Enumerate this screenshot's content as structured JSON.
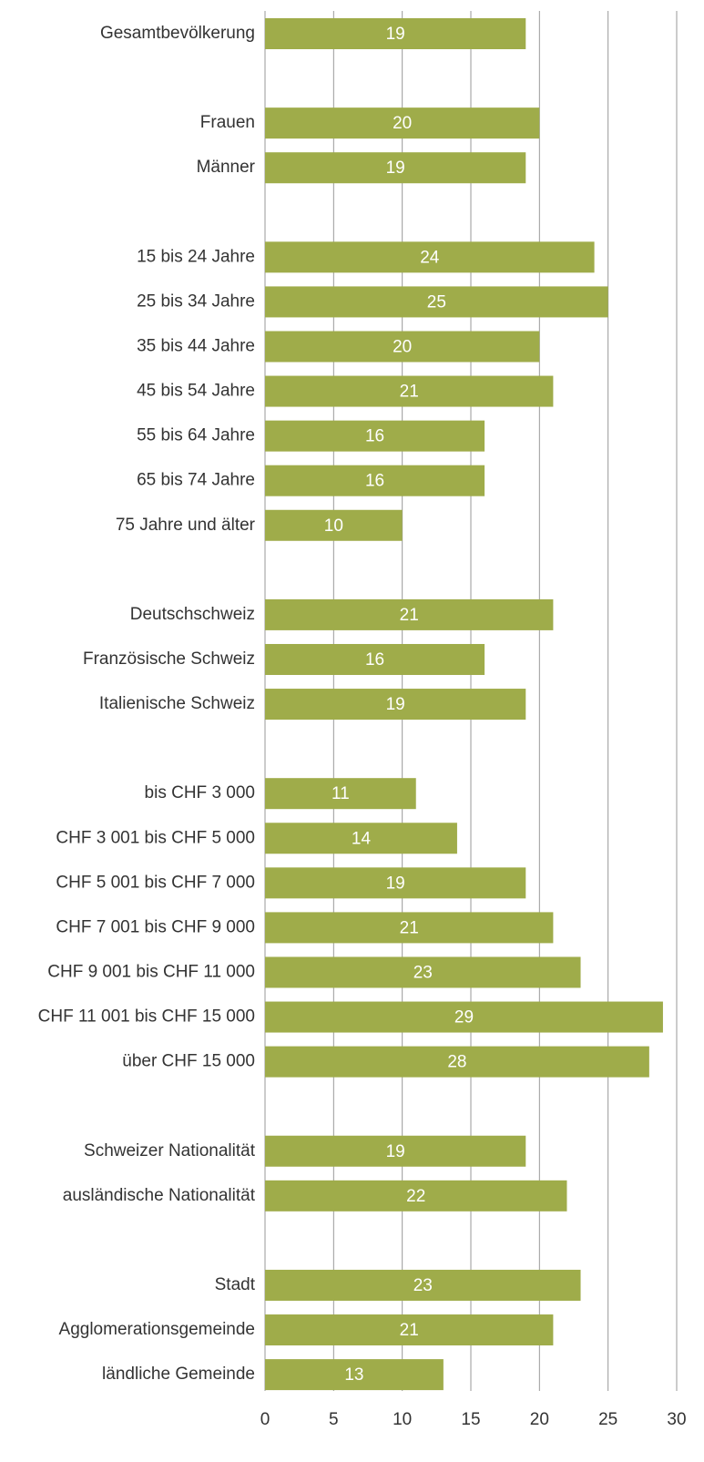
{
  "chart_data": {
    "type": "bar",
    "orientation": "horizontal",
    "categories": [
      "Gesamtbevölkerung",
      null,
      "Frauen",
      "Männer",
      null,
      "15 bis 24 Jahre",
      "25 bis 34 Jahre",
      "35 bis 44 Jahre",
      "45 bis 54 Jahre",
      "55 bis 64 Jahre",
      "65 bis 74 Jahre",
      "75 Jahre und älter",
      null,
      "Deutschschweiz",
      "Französische Schweiz",
      "Italienische Schweiz",
      null,
      "bis CHF 3 000",
      "CHF 3 001 bis CHF 5 000",
      "CHF 5 001 bis CHF 7 000",
      "CHF 7 001 bis CHF 9 000",
      "CHF 9 001 bis CHF 11 000",
      "CHF 11 001 bis CHF 15 000",
      "über CHF 15 000",
      null,
      "Schweizer Nationalität",
      "ausländische Nationalität",
      null,
      "Stadt",
      "Agglomerationsgemeinde",
      "ländliche Gemeinde"
    ],
    "values": [
      19,
      null,
      20,
      19,
      null,
      24,
      25,
      20,
      21,
      16,
      16,
      10,
      null,
      21,
      16,
      19,
      null,
      11,
      14,
      19,
      21,
      23,
      29,
      28,
      null,
      19,
      22,
      null,
      23,
      21,
      13
    ],
    "color": "#9fac4a",
    "xlim": [
      0,
      30
    ],
    "xticks": [
      0,
      5,
      10,
      15,
      20,
      25,
      30
    ],
    "grid": true
  }
}
